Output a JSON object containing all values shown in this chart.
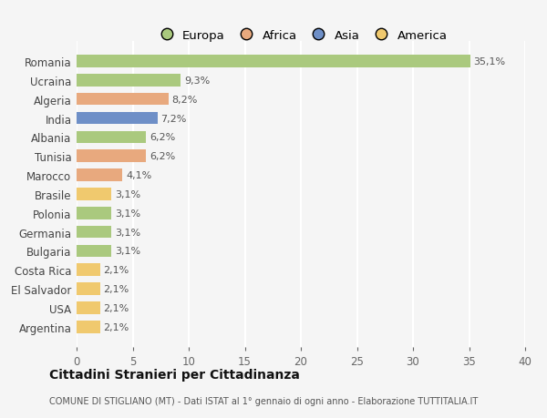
{
  "countries": [
    "Romania",
    "Ucraina",
    "Algeria",
    "India",
    "Albania",
    "Tunisia",
    "Marocco",
    "Brasile",
    "Polonia",
    "Germania",
    "Bulgaria",
    "Costa Rica",
    "El Salvador",
    "USA",
    "Argentina"
  ],
  "values": [
    35.1,
    9.3,
    8.2,
    7.2,
    6.2,
    6.2,
    4.1,
    3.1,
    3.1,
    3.1,
    3.1,
    2.1,
    2.1,
    2.1,
    2.1
  ],
  "labels": [
    "35,1%",
    "9,3%",
    "8,2%",
    "7,2%",
    "6,2%",
    "6,2%",
    "4,1%",
    "3,1%",
    "3,1%",
    "3,1%",
    "3,1%",
    "2,1%",
    "2,1%",
    "2,1%",
    "2,1%"
  ],
  "colors": [
    "#aac97e",
    "#aac97e",
    "#e8a97e",
    "#6e8fc7",
    "#aac97e",
    "#e8a97e",
    "#e8a97e",
    "#f0c96e",
    "#aac97e",
    "#aac97e",
    "#aac97e",
    "#f0c96e",
    "#f0c96e",
    "#f0c96e",
    "#f0c96e"
  ],
  "legend_labels": [
    "Europa",
    "Africa",
    "Asia",
    "America"
  ],
  "legend_colors": [
    "#aac97e",
    "#e8a97e",
    "#6e8fc7",
    "#f0c96e"
  ],
  "xlim": [
    0,
    40
  ],
  "xticks": [
    0,
    5,
    10,
    15,
    20,
    25,
    30,
    35,
    40
  ],
  "title": "Cittadini Stranieri per Cittadinanza",
  "subtitle": "COMUNE DI STIGLIANO (MT) - Dati ISTAT al 1° gennaio di ogni anno - Elaborazione TUTTITALIA.IT",
  "bg_color": "#f5f5f5",
  "grid_color": "#ffffff",
  "bar_height": 0.65
}
